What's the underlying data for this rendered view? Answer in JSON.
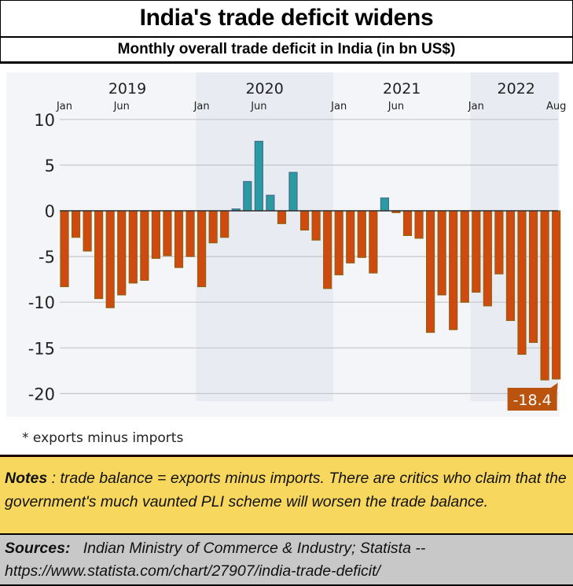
{
  "header": {
    "title": "India's trade deficit widens",
    "subtitle": "Monthly overall trade deficit in India (in bn US$)"
  },
  "chart_data": {
    "type": "bar",
    "title": "India's trade deficit widens",
    "subtitle": "Monthly overall trade deficit in India (in bn US$)",
    "xlabel": "",
    "ylabel": "",
    "ylim": [
      -20,
      10
    ],
    "yticks": [
      10,
      5,
      0,
      -5,
      -10,
      -15,
      -20
    ],
    "grid": true,
    "year_labels": [
      {
        "label": "2019",
        "center_index": 5.5
      },
      {
        "label": "2020",
        "center_index": 17.5
      },
      {
        "label": "2021",
        "center_index": 29.5
      },
      {
        "label": "2022",
        "center_index": 39.5
      }
    ],
    "shaded_years": [
      {
        "label": "2020",
        "start_index": 12,
        "end_index": 23
      },
      {
        "label": "2022",
        "start_index": 36,
        "end_index": 43
      }
    ],
    "month_tick_labels": [
      {
        "label": "Jan",
        "index": 0
      },
      {
        "label": "Jun",
        "index": 5
      },
      {
        "label": "Jan",
        "index": 12
      },
      {
        "label": "Jun",
        "index": 17
      },
      {
        "label": "Jan",
        "index": 24
      },
      {
        "label": "Jun",
        "index": 29
      },
      {
        "label": "Jan",
        "index": 36
      },
      {
        "label": "Aug",
        "index": 43
      }
    ],
    "categories": [
      "2019-01",
      "2019-02",
      "2019-03",
      "2019-04",
      "2019-05",
      "2019-06",
      "2019-07",
      "2019-08",
      "2019-09",
      "2019-10",
      "2019-11",
      "2019-12",
      "2020-01",
      "2020-02",
      "2020-03",
      "2020-04",
      "2020-05",
      "2020-06",
      "2020-07",
      "2020-08",
      "2020-09",
      "2020-10",
      "2020-11",
      "2020-12",
      "2021-01",
      "2021-02",
      "2021-03",
      "2021-04",
      "2021-05",
      "2021-06",
      "2021-07",
      "2021-08",
      "2021-09",
      "2021-10",
      "2021-11",
      "2021-12",
      "2022-01",
      "2022-02",
      "2022-03",
      "2022-04",
      "2022-05",
      "2022-06",
      "2022-07",
      "2022-08"
    ],
    "values": [
      -8.3,
      -2.9,
      -4.4,
      -9.6,
      -10.6,
      -9.2,
      -7.9,
      -7.6,
      -5.2,
      -4.9,
      -6.2,
      -5.0,
      -8.3,
      -3.5,
      -2.9,
      0.2,
      3.2,
      7.6,
      1.7,
      -1.4,
      4.2,
      -2.1,
      -3.2,
      -8.5,
      -7.0,
      -5.7,
      -5.1,
      -6.8,
      1.4,
      -0.2,
      -2.7,
      -3.0,
      -13.3,
      -9.2,
      -13.0,
      -10.0,
      -8.9,
      -10.4,
      -6.9,
      -12.0,
      -15.7,
      -14.4,
      -18.5,
      -18.4
    ],
    "colors": {
      "negative": "#d04a10",
      "negative_edge": "#8f6210",
      "positive": "#2a9ba3",
      "positive_edge": "#3f6e8a",
      "background": "#f3f5f9",
      "shaded_band": "#e8ebf2",
      "gridline": "#c4c6c9",
      "callout": "#b9530e"
    },
    "annotation": {
      "label": "-18.4",
      "index": 43
    },
    "footnote": "* exports minus imports"
  },
  "notes": {
    "label": "Notes",
    "text": " : trade balance = exports minus imports. There are critics who claim that the government's much vaunted PLI scheme will worsen the trade balance."
  },
  "sources": {
    "label": "Sources:",
    "text": "   Indian Ministry of Commerce & Industry; Statista -- https://www.statista.com/chart/27907/india-trade-deficit/"
  }
}
